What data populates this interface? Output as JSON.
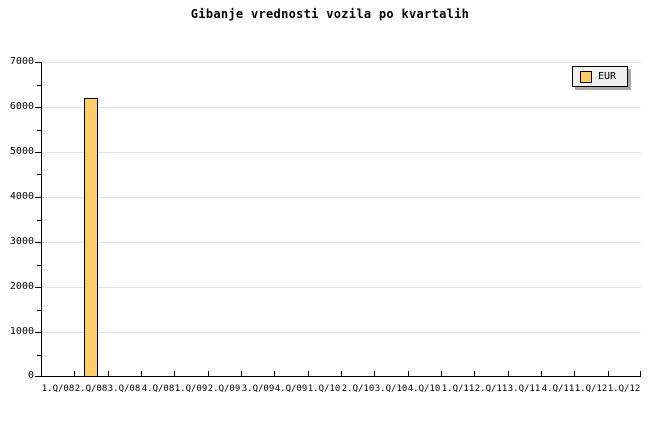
{
  "chart_data": {
    "type": "bar",
    "title": "Gibanje vrednosti vozila po kvartalih",
    "categories": [
      "1.Q/08",
      "2.Q/08",
      "3.Q/08",
      "4.Q/08",
      "1.Q/09",
      "2.Q/09",
      "3.Q/09",
      "4.Q/09",
      "1.Q/10",
      "2.Q/10",
      "3.Q/10",
      "4.Q/10",
      "1.Q/11",
      "2.Q/11",
      "3.Q/11",
      "4.Q/11",
      "1.Q/12",
      "1.Q/12"
    ],
    "series": [
      {
        "name": "EUR",
        "values": [
          null,
          6200,
          null,
          null,
          null,
          null,
          null,
          null,
          null,
          null,
          null,
          null,
          null,
          null,
          null,
          null,
          null,
          null
        ]
      }
    ],
    "xlabel": "",
    "ylabel": "",
    "ylim": [
      0,
      7000
    ],
    "y_major_step": 1000,
    "y_minor_step": 500,
    "grid": true,
    "legend_position": "top-right",
    "colors": {
      "background": "#FFFFFF",
      "bar_fill": "#FFCC66",
      "bar_border": "#000000",
      "grid_line": "#E2E2E2",
      "axis_line": "#000000",
      "text": "#000000",
      "legend_bg": "#F0F0F0",
      "legend_border": "#000000",
      "legend_shadow": "#A8A8A8"
    }
  }
}
